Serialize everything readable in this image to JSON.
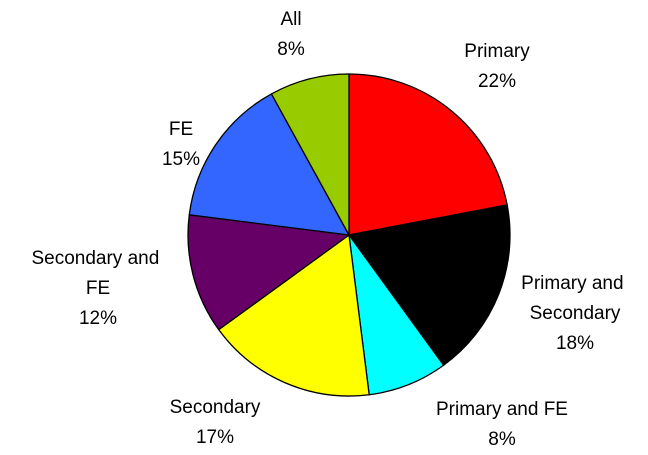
{
  "chart_data": {
    "type": "pie",
    "categories": [
      "Primary",
      "Primary and Secondary",
      "Primary and FE",
      "Secondary",
      "Secondary and FE",
      "FE",
      "All"
    ],
    "values": [
      22,
      18,
      8,
      17,
      12,
      15,
      8
    ],
    "value_labels": [
      "22%",
      "18%",
      "8%",
      "17%",
      "12%",
      "15%",
      "8%"
    ],
    "colors": [
      "#ff0000",
      "#000000",
      "#00ffff",
      "#ffff00",
      "#660066",
      "#3366ff",
      "#99cc00"
    ]
  }
}
